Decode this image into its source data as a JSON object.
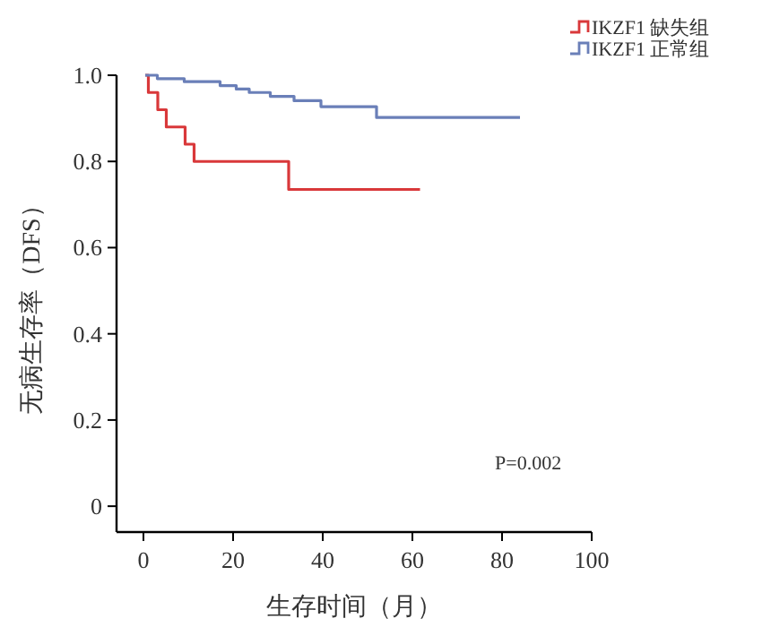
{
  "chart_data": {
    "type": "step",
    "xlabel": "生存时间（月）",
    "ylabel": "无病生存率（DFS）",
    "series": [
      {
        "name": "IKZF1 缺失组",
        "color": "#d9383a",
        "x": [
          0.4,
          1.1,
          3.2,
          5.1,
          9.3,
          11.3,
          32.4,
          61.7
        ],
        "values": [
          1.0,
          0.96,
          0.92,
          0.88,
          0.84,
          0.8,
          0.735,
          0.735
        ]
      },
      {
        "name": "IKZF1 正常组",
        "color": "#6a7fb8",
        "x": [
          0.4,
          3.1,
          9.1,
          17.1,
          20.7,
          23.6,
          28.3,
          33.6,
          39.6,
          52,
          84
        ],
        "values": [
          1.0,
          0.992,
          0.985,
          0.976,
          0.968,
          0.96,
          0.951,
          0.941,
          0.927,
          0.902,
          0.902
        ]
      }
    ],
    "xlim": [
      -6,
      100
    ],
    "xticks": [
      0,
      20,
      40,
      60,
      80,
      100
    ],
    "ylim": [
      -0.06,
      1.0
    ],
    "yticks": [
      0,
      0.2,
      0.4,
      0.6,
      0.8,
      {
        "value": 1,
        "label": "1.0"
      }
    ],
    "legend": "top right",
    "grid": false,
    "annotations": [
      "P=0.002"
    ]
  }
}
